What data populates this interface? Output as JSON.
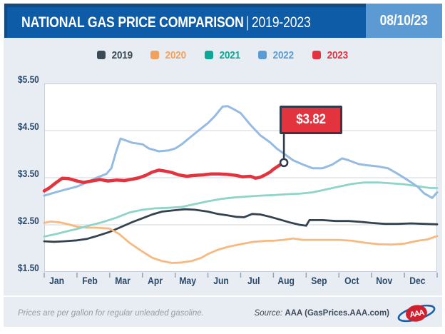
{
  "header": {
    "title_main": "NATIONAL GAS PRICE COMPARISON",
    "title_sep": "|",
    "title_range": "2019-2023",
    "date": "08/10/23"
  },
  "footer": {
    "note": "Prices are per gallon for regular unleaded gasoline.",
    "source_label": "Source:",
    "source_value": "AAA (GasPrices.AAA.com)",
    "logo_text": "AAA"
  },
  "colors": {
    "background": "#e8edf3",
    "header_blue": "#0e5ba8",
    "header_dark": "#17497c",
    "date_box_blue": "#5b9ad3",
    "flag_red": "#e2333f",
    "flag_border": "#2e3d49",
    "grid_line": "#d9dee4",
    "plot_border": "#c6cfd8",
    "tick_mark": "#8da2b5",
    "axis_label": "#2a486a"
  },
  "chart_data": {
    "type": "line",
    "title": "NATIONAL GAS PRICE COMPARISON | 2019-2023",
    "subtitle_date": "08/10/23",
    "xlabel": "",
    "ylabel": "",
    "units": "USD per gallon, regular unleaded gasoline",
    "x_tick_labels": [
      "Jan",
      "Feb",
      "Mar",
      "Apr",
      "May",
      "Jun",
      "Jul",
      "Aug",
      "Sep",
      "Oct",
      "Nov",
      "Dec"
    ],
    "y_tick_labels": [
      "$5.50",
      "$4.50",
      "$3.50",
      "$2.50",
      "$1.50"
    ],
    "y_tick_values": [
      5.5,
      4.5,
      3.5,
      2.5,
      1.5
    ],
    "ylim": [
      1.5,
      5.5
    ],
    "xlim_months": [
      0,
      12
    ],
    "grid": "horizontal",
    "legend_position": "top",
    "annotation": {
      "label": "$3.82",
      "x_frac": 7.32,
      "value": 3.82,
      "series": "2023"
    },
    "series": [
      {
        "name": "2019",
        "legend_color": "#3b4a54",
        "line_color": "#33424e",
        "line_width": 2.8,
        "points": [
          [
            0,
            2.15
          ],
          [
            0.3,
            2.14
          ],
          [
            0.6,
            2.15
          ],
          [
            1.0,
            2.17
          ],
          [
            1.3,
            2.2
          ],
          [
            1.6,
            2.26
          ],
          [
            2.0,
            2.35
          ],
          [
            2.3,
            2.44
          ],
          [
            2.7,
            2.56
          ],
          [
            3.0,
            2.64
          ],
          [
            3.3,
            2.72
          ],
          [
            3.6,
            2.78
          ],
          [
            4.0,
            2.81
          ],
          [
            4.3,
            2.83
          ],
          [
            4.6,
            2.82
          ],
          [
            5.0,
            2.78
          ],
          [
            5.3,
            2.73
          ],
          [
            5.6,
            2.7
          ],
          [
            5.85,
            2.67
          ],
          [
            6.1,
            2.66
          ],
          [
            6.35,
            2.73
          ],
          [
            6.6,
            2.72
          ],
          [
            6.9,
            2.67
          ],
          [
            7.2,
            2.61
          ],
          [
            7.5,
            2.55
          ],
          [
            7.8,
            2.5
          ],
          [
            8.0,
            2.48
          ],
          [
            8.1,
            2.6
          ],
          [
            8.5,
            2.6
          ],
          [
            8.9,
            2.58
          ],
          [
            9.3,
            2.58
          ],
          [
            9.7,
            2.56
          ],
          [
            10.0,
            2.54
          ],
          [
            10.4,
            2.52
          ],
          [
            10.8,
            2.52
          ],
          [
            11.2,
            2.53
          ],
          [
            11.6,
            2.52
          ],
          [
            12,
            2.51
          ]
        ]
      },
      {
        "name": "2020",
        "legend_color": "#f2a05e",
        "line_color": "#f7b97f",
        "line_width": 2.8,
        "points": [
          [
            0,
            2.54
          ],
          [
            0.2,
            2.57
          ],
          [
            0.5,
            2.55
          ],
          [
            0.8,
            2.5
          ],
          [
            1.0,
            2.46
          ],
          [
            1.3,
            2.44
          ],
          [
            1.6,
            2.44
          ],
          [
            2.0,
            2.42
          ],
          [
            2.3,
            2.3
          ],
          [
            2.6,
            2.12
          ],
          [
            3.0,
            1.93
          ],
          [
            3.3,
            1.8
          ],
          [
            3.6,
            1.73
          ],
          [
            3.9,
            1.69
          ],
          [
            4.2,
            1.7
          ],
          [
            4.5,
            1.73
          ],
          [
            4.8,
            1.8
          ],
          [
            5.0,
            1.88
          ],
          [
            5.3,
            1.97
          ],
          [
            5.6,
            2.03
          ],
          [
            6.0,
            2.09
          ],
          [
            6.4,
            2.14
          ],
          [
            6.8,
            2.16
          ],
          [
            7.0,
            2.16
          ],
          [
            7.3,
            2.18
          ],
          [
            7.6,
            2.21
          ],
          [
            7.9,
            2.18
          ],
          [
            8.3,
            2.18
          ],
          [
            8.7,
            2.18
          ],
          [
            9.0,
            2.18
          ],
          [
            9.4,
            2.16
          ],
          [
            9.8,
            2.12
          ],
          [
            10.2,
            2.09
          ],
          [
            10.6,
            2.08
          ],
          [
            11.0,
            2.1
          ],
          [
            11.4,
            2.16
          ],
          [
            11.7,
            2.19
          ],
          [
            12,
            2.26
          ]
        ]
      },
      {
        "name": "2021",
        "legend_color": "#0ea695",
        "line_color": "#8fd4c9",
        "line_width": 2.8,
        "points": [
          [
            0,
            2.25
          ],
          [
            0.4,
            2.31
          ],
          [
            0.8,
            2.38
          ],
          [
            1.0,
            2.41
          ],
          [
            1.4,
            2.49
          ],
          [
            1.8,
            2.56
          ],
          [
            2.2,
            2.65
          ],
          [
            2.6,
            2.76
          ],
          [
            3.0,
            2.82
          ],
          [
            3.4,
            2.85
          ],
          [
            3.8,
            2.86
          ],
          [
            4.2,
            2.88
          ],
          [
            4.6,
            2.94
          ],
          [
            5.0,
            3.0
          ],
          [
            5.4,
            3.05
          ],
          [
            5.8,
            3.08
          ],
          [
            6.2,
            3.1
          ],
          [
            6.6,
            3.12
          ],
          [
            7.0,
            3.13
          ],
          [
            7.4,
            3.15
          ],
          [
            7.8,
            3.16
          ],
          [
            8.2,
            3.19
          ],
          [
            8.6,
            3.25
          ],
          [
            9.0,
            3.31
          ],
          [
            9.4,
            3.37
          ],
          [
            9.8,
            3.4
          ],
          [
            10.2,
            3.4
          ],
          [
            10.6,
            3.38
          ],
          [
            11.0,
            3.36
          ],
          [
            11.4,
            3.32
          ],
          [
            11.8,
            3.28
          ],
          [
            12,
            3.28
          ]
        ]
      },
      {
        "name": "2022",
        "legend_color": "#5b9bd5",
        "line_color": "#96bbe2",
        "line_width": 3,
        "points": [
          [
            0,
            3.12
          ],
          [
            0.3,
            3.18
          ],
          [
            0.6,
            3.24
          ],
          [
            1.0,
            3.31
          ],
          [
            1.3,
            3.4
          ],
          [
            1.6,
            3.5
          ],
          [
            1.9,
            3.58
          ],
          [
            2.05,
            3.7
          ],
          [
            2.2,
            4.06
          ],
          [
            2.33,
            4.33
          ],
          [
            2.5,
            4.29
          ],
          [
            2.7,
            4.24
          ],
          [
            3.0,
            4.21
          ],
          [
            3.2,
            4.12
          ],
          [
            3.5,
            4.06
          ],
          [
            3.8,
            4.08
          ],
          [
            4.0,
            4.12
          ],
          [
            4.2,
            4.21
          ],
          [
            4.5,
            4.38
          ],
          [
            4.8,
            4.55
          ],
          [
            5.0,
            4.66
          ],
          [
            5.2,
            4.8
          ],
          [
            5.45,
            5.01
          ],
          [
            5.6,
            5.02
          ],
          [
            5.8,
            4.95
          ],
          [
            6.0,
            4.87
          ],
          [
            6.3,
            4.62
          ],
          [
            6.6,
            4.4
          ],
          [
            6.9,
            4.25
          ],
          [
            7.1,
            4.12
          ],
          [
            7.32,
            4.01
          ],
          [
            7.6,
            3.87
          ],
          [
            7.9,
            3.78
          ],
          [
            8.2,
            3.7
          ],
          [
            8.5,
            3.7
          ],
          [
            8.8,
            3.78
          ],
          [
            9.1,
            3.91
          ],
          [
            9.3,
            3.87
          ],
          [
            9.6,
            3.79
          ],
          [
            9.9,
            3.76
          ],
          [
            10.2,
            3.74
          ],
          [
            10.5,
            3.7
          ],
          [
            10.8,
            3.58
          ],
          [
            11.1,
            3.45
          ],
          [
            11.4,
            3.31
          ],
          [
            11.6,
            3.17
          ],
          [
            11.85,
            3.07
          ],
          [
            12,
            3.19
          ]
        ]
      },
      {
        "name": "2023",
        "legend_color": "#e2333f",
        "line_color": "#e2333f",
        "line_width": 4.5,
        "points": [
          [
            0,
            3.22
          ],
          [
            0.15,
            3.28
          ],
          [
            0.35,
            3.39
          ],
          [
            0.55,
            3.49
          ],
          [
            0.75,
            3.48
          ],
          [
            1.0,
            3.43
          ],
          [
            1.2,
            3.4
          ],
          [
            1.45,
            3.43
          ],
          [
            1.7,
            3.46
          ],
          [
            1.95,
            3.43
          ],
          [
            2.2,
            3.45
          ],
          [
            2.45,
            3.44
          ],
          [
            2.7,
            3.47
          ],
          [
            2.9,
            3.5
          ],
          [
            3.1,
            3.55
          ],
          [
            3.3,
            3.62
          ],
          [
            3.5,
            3.66
          ],
          [
            3.7,
            3.64
          ],
          [
            3.9,
            3.61
          ],
          [
            4.1,
            3.56
          ],
          [
            4.35,
            3.53
          ],
          [
            4.6,
            3.55
          ],
          [
            4.85,
            3.56
          ],
          [
            5.1,
            3.58
          ],
          [
            5.35,
            3.58
          ],
          [
            5.6,
            3.57
          ],
          [
            5.85,
            3.55
          ],
          [
            6.05,
            3.52
          ],
          [
            6.3,
            3.53
          ],
          [
            6.45,
            3.49
          ],
          [
            6.6,
            3.51
          ],
          [
            6.75,
            3.56
          ],
          [
            6.9,
            3.62
          ],
          [
            7.0,
            3.68
          ],
          [
            7.15,
            3.75
          ],
          [
            7.32,
            3.82
          ]
        ]
      }
    ]
  }
}
